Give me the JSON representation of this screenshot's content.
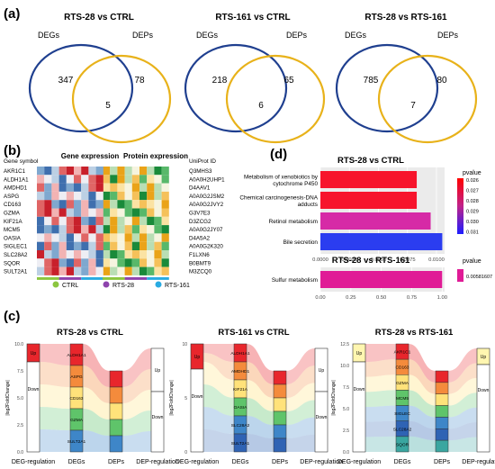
{
  "panels": {
    "a": "(a)",
    "b": "(b)",
    "c": "(c)",
    "d": "(d)"
  },
  "venn": [
    {
      "title": "RTS-28 vs CTRL",
      "left_label": "DEGs",
      "right_label": "DEPs",
      "left_only": "347",
      "overlap": "5",
      "right_only": "78"
    },
    {
      "title": "RTS-161 vs CTRL",
      "left_label": "DEGs",
      "right_label": "DEPs",
      "left_only": "218",
      "overlap": "6",
      "right_only": "65"
    },
    {
      "title": "RTS-28 vs RTS-161",
      "left_label": "DEGs",
      "right_label": "DEPs",
      "left_only": "785",
      "overlap": "7",
      "right_only": "80"
    }
  ],
  "heatmap": {
    "gene_header": "Gene symbol",
    "gene_title": "Gene expression",
    "protein_title": "Protein expression",
    "uniprot_header": "UniProt ID",
    "genes": [
      "AKR1C1",
      "ALDH1A1",
      "AMDHD1",
      "ASPG",
      "CD163",
      "GZMA",
      "KIF21A",
      "MCM5",
      "OASIA",
      "SIGLEC1",
      "SLC28A2",
      "SQOR",
      "SULT2A1"
    ],
    "uniprot": [
      "Q3MHS3",
      "A0A0H2UHP1",
      "D4AAV1",
      "A0A0G2JSM2",
      "A0A0G2JVY2",
      "G3V7E3",
      "D3ZCG2",
      "A0A0G2JY07",
      "D4A5A2",
      "A0A0G2K320",
      "F1LXN6",
      "B0BMT9",
      "M3ZCQ0"
    ],
    "legend": [
      "CTRL",
      "RTS-28",
      "RTS-161"
    ],
    "group_colors": [
      "#8cc63f",
      "#8e44ad",
      "#29abe2"
    ]
  },
  "enrichment": {
    "top": {
      "title": "RTS-28 vs CTRL",
      "categories": [
        "Metabolism of xenobiotics by cytochrome P450",
        "Chemical carcinogenesis-DNA adducts",
        "Retinol metabolism",
        "Bile secretion"
      ],
      "values": [
        0.0083,
        0.0083,
        0.0095,
        0.0105
      ],
      "ticks": [
        "0.0000",
        "0.0025",
        "0.0050",
        "0.0075",
        "0.0100"
      ],
      "xlim": [
        0,
        0.0107
      ],
      "legend_title": "pvalue",
      "legend_ticks": [
        "0.026",
        "0.027",
        "0.028",
        "0.029",
        "0.030",
        "0.031"
      ]
    },
    "bottom": {
      "title": "RTS-28 vs RTS-161",
      "categories": [
        "Sulfur metabolism"
      ],
      "values": [
        1.0
      ],
      "ticks": [
        "0.00",
        "0.25",
        "0.50",
        "0.75",
        "1.00"
      ],
      "xlim": [
        0,
        1.02
      ],
      "legend_title": "pvalue",
      "legend_ticks": [
        "0.00581607"
      ]
    }
  },
  "alluvial": {
    "axis_label": "|log2FoldChange|",
    "x_labels": [
      "DEG-regulation",
      "DEGs",
      "DEPs",
      "DEP-regulation"
    ],
    "up": "Up",
    "down": "Down",
    "plots": [
      {
        "title": "RTS-28 vs CTRL",
        "yticks": [
          "0.0",
          "2.5",
          "5.0",
          "7.5",
          "10.0"
        ],
        "genes": [
          "ALDH1A1",
          "ASPG",
          "CD163",
          "GZMA",
          "SULT2A1"
        ]
      },
      {
        "title": "RTS-161 vs CTRL",
        "yticks": [
          "0",
          "5",
          "10"
        ],
        "genes": [
          "ALDH1A1",
          "AMDHD1",
          "KIF21A",
          "OASIA",
          "SLC28A2",
          "SULT2A1"
        ]
      },
      {
        "title": "RTS-28 vs RTS-161",
        "yticks": [
          "0.0",
          "2.5",
          "5.0",
          "7.5",
          "10.0",
          "12.5"
        ],
        "genes": [
          "AKR1C1",
          "CD163",
          "GZMA",
          "MCM5",
          "SIGLEC",
          "SLC28A2",
          "SQOR"
        ]
      }
    ]
  }
}
